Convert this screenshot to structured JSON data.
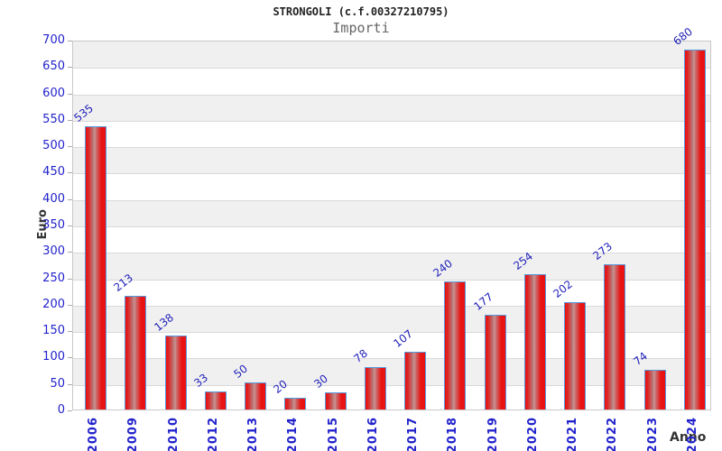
{
  "chart_data": {
    "type": "bar",
    "title": "STRONGOLI (c.f.00327210795)",
    "subtitle": "Importi",
    "xlabel": "Anno",
    "ylabel": "Euro",
    "categories": [
      "2006",
      "2009",
      "2010",
      "2012",
      "2013",
      "2014",
      "2015",
      "2016",
      "2017",
      "2018",
      "2019",
      "2020",
      "2021",
      "2022",
      "2023",
      "2024"
    ],
    "values": [
      535,
      213,
      138,
      33,
      50,
      20,
      30,
      78,
      107,
      240,
      177,
      254,
      202,
      273,
      74,
      680
    ],
    "ylim": [
      0,
      700
    ],
    "ytick_step": 50,
    "yticks": [
      0,
      50,
      100,
      150,
      200,
      250,
      300,
      350,
      400,
      450,
      500,
      550,
      600,
      650,
      700
    ],
    "grid": "horizontal gridlines every 50 with alternating white/gray bands",
    "legend_position": "none"
  },
  "colors": {
    "bar_fill": "#ea1212",
    "bar_highlight": "#c89494",
    "bar_border": "#5599dd",
    "tick_label_blue": "#2222cc",
    "value_label_blue": "#2222bb",
    "axis_title_gray": "#333333",
    "subtitle_gray": "#666666",
    "band_gray": "#f0f0f0",
    "grid_line": "#d9d9d9",
    "plot_border": "#c9c9c9"
  }
}
